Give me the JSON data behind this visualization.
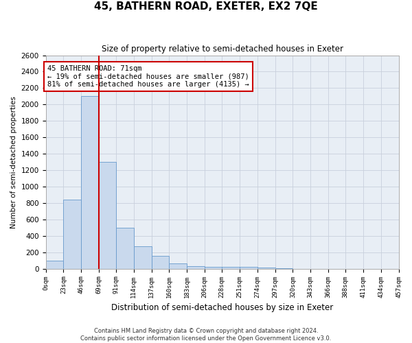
{
  "title": "45, BATHERN ROAD, EXETER, EX2 7QE",
  "subtitle": "Size of property relative to semi-detached houses in Exeter",
  "xlabel": "Distribution of semi-detached houses by size in Exeter",
  "ylabel": "Number of semi-detached properties",
  "footer_line1": "Contains HM Land Registry data © Crown copyright and database right 2024.",
  "footer_line2": "Contains public sector information licensed under the Open Government Licence v3.0.",
  "property_label": "45 BATHERN ROAD: 71sqm",
  "smaller_pct": 19,
  "smaller_count": 987,
  "larger_pct": 81,
  "larger_count": 4135,
  "bar_edges": [
    0,
    23,
    46,
    69,
    91,
    114,
    137,
    160,
    183,
    206,
    228,
    251,
    274,
    297,
    320,
    343,
    366,
    388,
    411,
    434,
    457
  ],
  "bar_heights": [
    100,
    840,
    2100,
    1300,
    500,
    270,
    160,
    65,
    35,
    25,
    20,
    25,
    10,
    5,
    0,
    0,
    0,
    0,
    0,
    0
  ],
  "bar_color": "#c9d9ed",
  "bar_edge_color": "#6699cc",
  "vline_color": "#cc0000",
  "vline_x": 69,
  "annotation_box_color": "#cc0000",
  "grid_color": "#c8d0dc",
  "plot_bg": "#e8eef5",
  "ylim": [
    0,
    2600
  ],
  "yticks": [
    0,
    200,
    400,
    600,
    800,
    1000,
    1200,
    1400,
    1600,
    1800,
    2000,
    2200,
    2400,
    2600
  ],
  "tick_labels": [
    "0sqm",
    "23sqm",
    "46sqm",
    "69sqm",
    "91sqm",
    "114sqm",
    "137sqm",
    "160sqm",
    "183sqm",
    "206sqm",
    "228sqm",
    "251sqm",
    "274sqm",
    "297sqm",
    "320sqm",
    "343sqm",
    "366sqm",
    "388sqm",
    "411sqm",
    "434sqm",
    "457sqm"
  ]
}
